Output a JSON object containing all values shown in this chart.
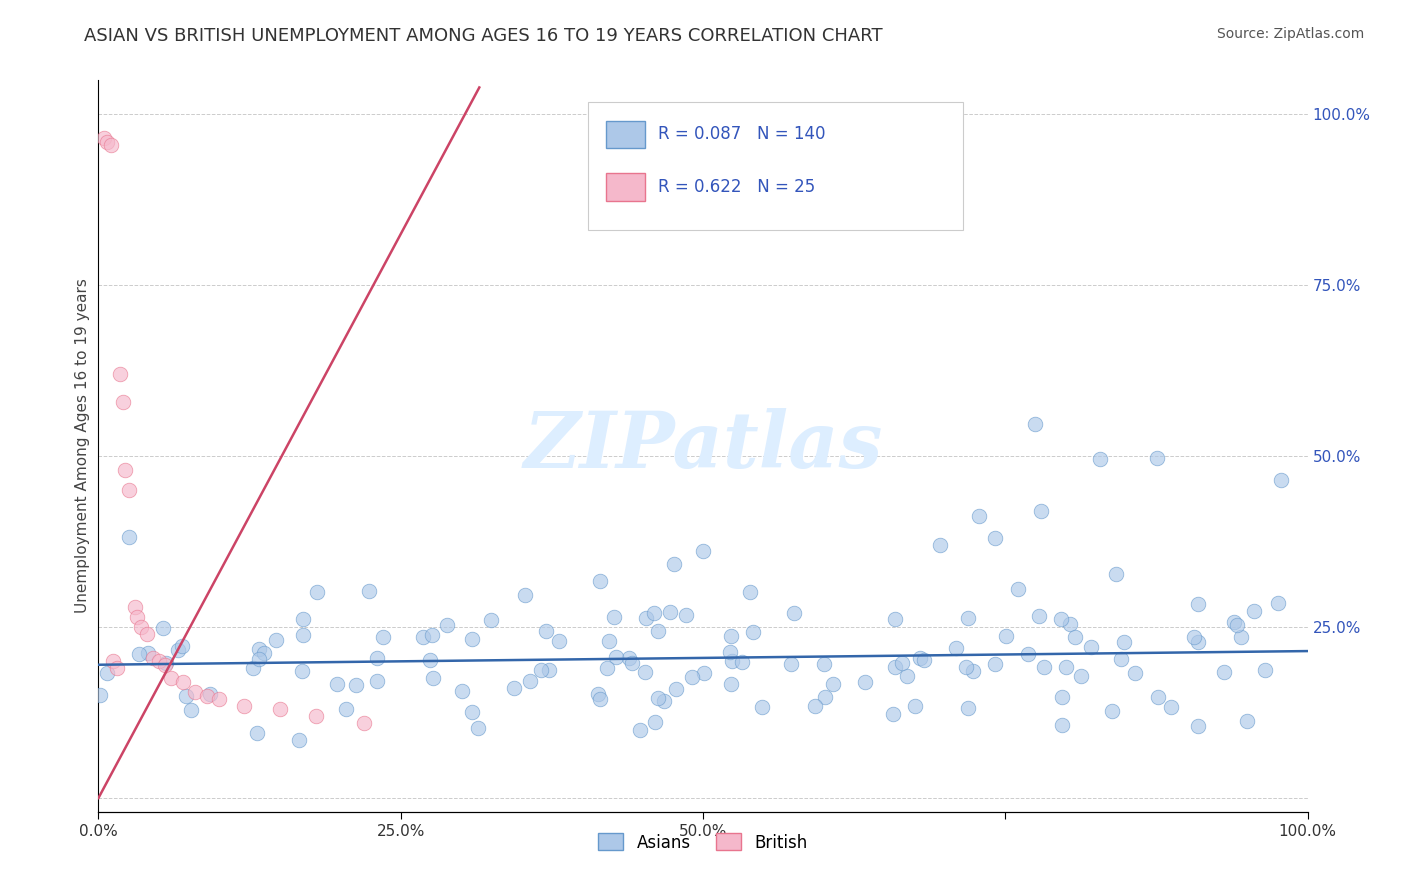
{
  "title": "ASIAN VS BRITISH UNEMPLOYMENT AMONG AGES 16 TO 19 YEARS CORRELATION CHART",
  "source": "Source: ZipAtlas.com",
  "ylabel": "Unemployment Among Ages 16 to 19 years",
  "xlim": [
    0.0,
    1.0
  ],
  "ylim": [
    -0.02,
    1.05
  ],
  "x_ticks": [
    0.0,
    0.25,
    0.5,
    0.75,
    1.0
  ],
  "x_tick_labels": [
    "0.0%",
    "25.0%",
    "50.0%",
    "",
    "100.0%"
  ],
  "y_ticks": [
    0.0,
    0.25,
    0.5,
    0.75,
    1.0
  ],
  "y_tick_labels_right": [
    "",
    "25.0%",
    "50.0%",
    "75.0%",
    "100.0%"
  ],
  "asian_color": "#adc8e8",
  "british_color": "#f5b8cb",
  "asian_edge_color": "#6699cc",
  "british_edge_color": "#e8758e",
  "asian_line_color": "#3366aa",
  "british_line_color": "#cc4466",
  "R_asian": 0.087,
  "N_asian": 140,
  "R_british": 0.622,
  "N_british": 25,
  "legend_value_color": "#3355bb",
  "background_color": "#ffffff",
  "grid_color": "#cccccc",
  "title_color": "#333333",
  "source_color": "#555555",
  "watermark_color": "#ddeeff",
  "ylabel_color": "#444444",
  "asian_intercept": 0.195,
  "asian_slope": 0.02,
  "british_intercept": 0.0,
  "british_slope": 3.3
}
